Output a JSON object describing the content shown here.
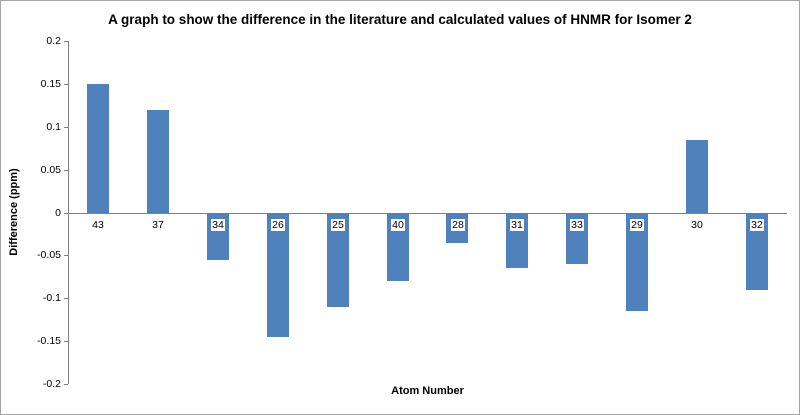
{
  "chart_data": {
    "type": "bar",
    "title": "A graph to show the difference in the literature and calculated values of HNMR for Isomer 2",
    "xlabel": "Atom Number",
    "ylabel": "Difference (ppm)",
    "categories": [
      "43",
      "37",
      "34",
      "26",
      "25",
      "40",
      "28",
      "31",
      "33",
      "29",
      "30",
      "32"
    ],
    "values": [
      0.15,
      0.12,
      -0.055,
      -0.145,
      -0.11,
      -0.08,
      -0.035,
      -0.065,
      -0.06,
      -0.115,
      0.085,
      -0.09
    ],
    "ylim": [
      -0.2,
      0.2
    ],
    "ytick_step": 0.05,
    "ytick_labels": [
      "0.2",
      "0.15",
      "0.1",
      "0.05",
      "0",
      "-0.05",
      "-0.1",
      "-0.15",
      "-0.2"
    ],
    "grid": false,
    "legend": "none",
    "bar_color": "#4F81BD",
    "axis_color": "#808080"
  }
}
